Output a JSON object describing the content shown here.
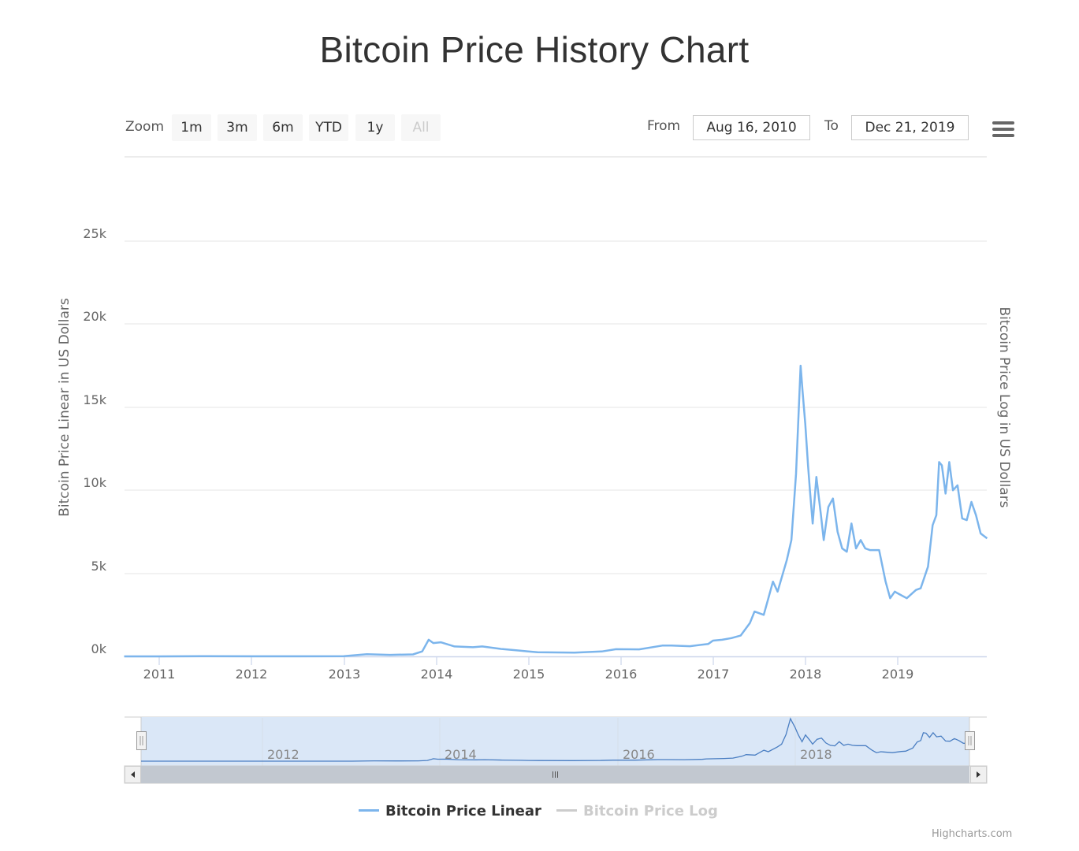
{
  "title": "Bitcoin Price History Chart",
  "range_selector": {
    "zoom_label": "Zoom",
    "buttons": [
      {
        "label": "1m",
        "state": "normal"
      },
      {
        "label": "3m",
        "state": "normal"
      },
      {
        "label": "6m",
        "state": "normal"
      },
      {
        "label": "YTD",
        "state": "normal"
      },
      {
        "label": "1y",
        "state": "normal"
      },
      {
        "label": "All",
        "state": "disabled"
      }
    ],
    "from_label": "From",
    "from_value": "Aug 16, 2010",
    "to_label": "To",
    "to_value": "Dec 21, 2019"
  },
  "menu": {
    "icon": "hamburger-menu-icon"
  },
  "axes": {
    "y_left_title": "Bitcoin Price Linear in US Dollars",
    "y_right_title": "Bitcoin Price Log in US Dollars",
    "y_ticks": [
      "25k",
      "20k",
      "15k",
      "10k",
      "5k",
      "0k"
    ],
    "x_ticks": [
      "2011",
      "2012",
      "2013",
      "2014",
      "2015",
      "2016",
      "2017",
      "2018",
      "2019"
    ]
  },
  "navigator": {
    "labels": [
      "2012",
      "2014",
      "2016",
      "2018"
    ],
    "left_arrow": "scroll-left-arrow-icon",
    "right_arrow": "scroll-right-arrow-icon",
    "grip": "III"
  },
  "legend": {
    "items": [
      {
        "label": "Bitcoin Price Linear",
        "color": "#7cb5ec",
        "visible": true
      },
      {
        "label": "Bitcoin Price Log",
        "color": "#cccccc",
        "visible": false
      }
    ]
  },
  "credits": "Highcharts.com",
  "colors": {
    "series_linear": "#7cb5ec",
    "navigator_series": "#4a7ec2",
    "navigator_mask": "#dae7f7",
    "scrollbar": "#c2c8d0",
    "grid": "#e6e6e6"
  },
  "chart_data": {
    "type": "line",
    "title": "Bitcoin Price History Chart",
    "xlabel": "",
    "ylabel": "Bitcoin Price Linear in US Dollars",
    "y2label": "Bitcoin Price Log in US Dollars",
    "ylim": [
      0,
      25000
    ],
    "xlim": [
      "2010-08-16",
      "2019-12-21"
    ],
    "grid": true,
    "legend_position": "bottom",
    "series": [
      {
        "name": "Bitcoin Price Linear",
        "visible": true,
        "x": [
          2010.62,
          2011.0,
          2011.5,
          2012.0,
          2012.5,
          2013.0,
          2013.25,
          2013.5,
          2013.75,
          2013.85,
          2013.92,
          2013.97,
          2014.05,
          2014.2,
          2014.4,
          2014.5,
          2014.7,
          2014.9,
          2015.0,
          2015.1,
          2015.5,
          2015.8,
          2015.95,
          2016.2,
          2016.45,
          2016.55,
          2016.75,
          2016.95,
          2017.0,
          2017.1,
          2017.2,
          2017.3,
          2017.4,
          2017.45,
          2017.55,
          2017.6,
          2017.65,
          2017.7,
          2017.8,
          2017.85,
          2017.9,
          2017.95,
          2017.97,
          2018.0,
          2018.03,
          2018.05,
          2018.08,
          2018.12,
          2018.17,
          2018.2,
          2018.25,
          2018.3,
          2018.35,
          2018.4,
          2018.45,
          2018.5,
          2018.55,
          2018.6,
          2018.65,
          2018.7,
          2018.8,
          2018.87,
          2018.92,
          2018.97,
          2019.0,
          2019.1,
          2019.2,
          2019.25,
          2019.33,
          2019.38,
          2019.42,
          2019.45,
          2019.48,
          2019.52,
          2019.56,
          2019.6,
          2019.65,
          2019.7,
          2019.75,
          2019.8,
          2019.85,
          2019.9,
          2019.97
        ],
        "values": [
          0,
          0,
          15,
          5,
          7,
          13,
          130,
          90,
          120,
          300,
          1000,
          800,
          850,
          600,
          550,
          600,
          450,
          350,
          300,
          250,
          230,
          300,
          430,
          420,
          650,
          650,
          610,
          750,
          950,
          1000,
          1100,
          1250,
          2000,
          2700,
          2500,
          3500,
          4500,
          3900,
          5800,
          7000,
          11000,
          17500,
          16000,
          14000,
          11500,
          10000,
          8000,
          10800,
          8500,
          7000,
          9000,
          9500,
          7500,
          6500,
          6300,
          8000,
          6500,
          7000,
          6500,
          6400,
          6400,
          4500,
          3500,
          3900,
          3800,
          3500,
          4000,
          4100,
          5400,
          7900,
          8500,
          11700,
          11500,
          9800,
          11700,
          10000,
          10300,
          8300,
          8200,
          9300,
          8500,
          7400,
          7100
        ]
      },
      {
        "name": "Bitcoin Price Log",
        "visible": false,
        "values": []
      }
    ]
  }
}
